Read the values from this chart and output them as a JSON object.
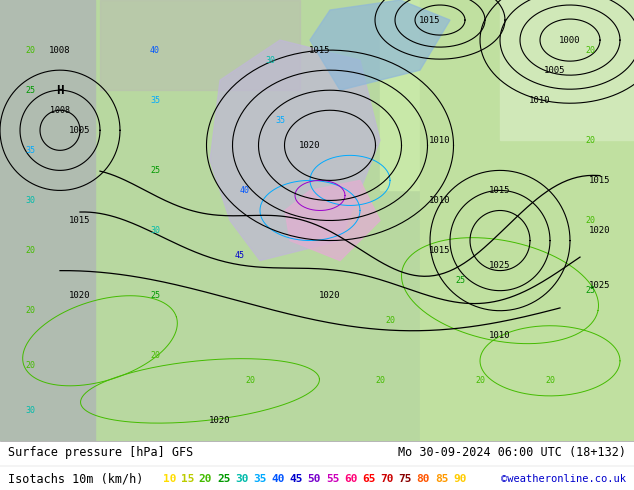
{
  "title_left": "Surface pressure [hPa] GFS",
  "title_right": "Mo 30-09-2024 06:00 UTC (18+132)",
  "legend_label": "Isotachs 10m (km/h)",
  "copyright": "©weatheronline.co.uk",
  "isotach_values": [
    10,
    15,
    20,
    25,
    30,
    35,
    40,
    45,
    50,
    55,
    60,
    65,
    70,
    75,
    80,
    85,
    90
  ],
  "isotach_colors": [
    "#ffdd00",
    "#bbcc00",
    "#44bb00",
    "#009900",
    "#00bbaa",
    "#00aaff",
    "#0055ff",
    "#0000cc",
    "#7700cc",
    "#cc00bb",
    "#ff0077",
    "#ff0000",
    "#cc0000",
    "#880000",
    "#ff5500",
    "#ff9900",
    "#ffcc00"
  ],
  "figsize": [
    6.34,
    4.9
  ],
  "dpi": 100,
  "map_colors": {
    "light_green": "#c8e8a8",
    "medium_green": "#a8d888",
    "gray": "#b0b8a8",
    "light_gray": "#c8ccc8",
    "sea_gray": "#b8c4b8"
  },
  "bottom_bg": "#ffffff",
  "title_fontsize": 8.5,
  "legend_fontsize": 8.5,
  "value_fontsize": 8.0
}
